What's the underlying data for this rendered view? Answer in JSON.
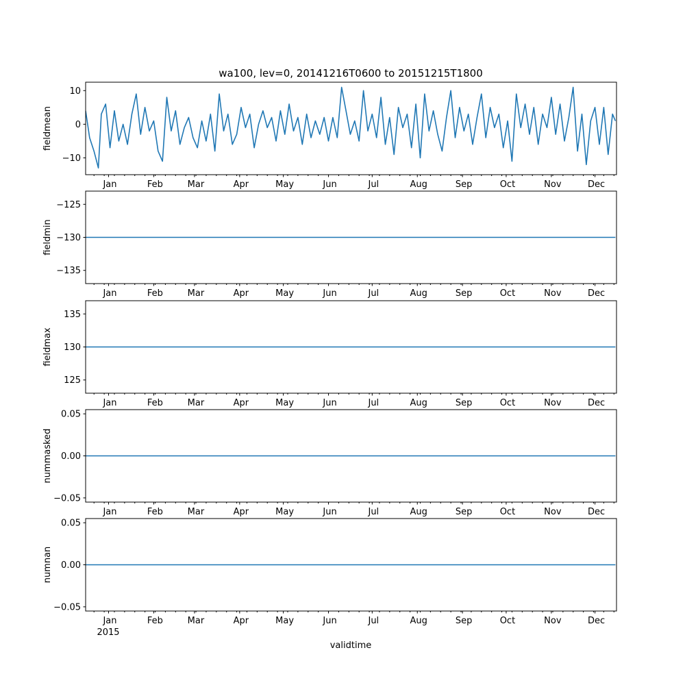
{
  "chart_data": {
    "type": "line",
    "title": "wa100, lev=0, 20141216T0600 to 20151215T1800",
    "xlabel": "validtime",
    "x_range": [
      "2014-12-16T06:00",
      "2015-12-15T18:00"
    ],
    "x_month_labels": [
      "Jan",
      "Feb",
      "Mar",
      "Apr",
      "May",
      "Jun",
      "Jul",
      "Aug",
      "Sep",
      "Oct",
      "Nov",
      "Dec"
    ],
    "x_month_dates": [
      "2015-01-01",
      "2015-02-01",
      "2015-03-01",
      "2015-04-01",
      "2015-05-01",
      "2015-06-01",
      "2015-07-01",
      "2015-08-01",
      "2015-09-01",
      "2015-10-01",
      "2015-11-01",
      "2015-12-01"
    ],
    "x_year_label": "2015",
    "minor_tick_dates": [
      "2014-12-22",
      "2014-12-29",
      "2015-01-05",
      "2015-01-12",
      "2015-01-19",
      "2015-01-26",
      "2015-02-02",
      "2015-02-09",
      "2015-02-16",
      "2015-02-23",
      "2015-03-02",
      "2015-03-09",
      "2015-03-16",
      "2015-03-23",
      "2015-03-30",
      "2015-04-06",
      "2015-04-13",
      "2015-04-20",
      "2015-04-27",
      "2015-05-04",
      "2015-05-11",
      "2015-05-18",
      "2015-05-25",
      "2015-06-01",
      "2015-06-08",
      "2015-06-15",
      "2015-06-22",
      "2015-06-29",
      "2015-07-06",
      "2015-07-13",
      "2015-07-20",
      "2015-07-27",
      "2015-08-03",
      "2015-08-10",
      "2015-08-17",
      "2015-08-24",
      "2015-08-31",
      "2015-09-07",
      "2015-09-14",
      "2015-09-21",
      "2015-09-28",
      "2015-10-05",
      "2015-10-12",
      "2015-10-19",
      "2015-10-26",
      "2015-11-02",
      "2015-11-09",
      "2015-11-16",
      "2015-11-23",
      "2015-11-30",
      "2015-12-07",
      "2015-12-14"
    ],
    "line_color": "#1f77b4",
    "panels": [
      {
        "ylabel": "fieldmean",
        "ylim": [
          -15,
          12.5
        ],
        "yticks": [
          -10,
          0,
          10
        ],
        "ytick_labels": [
          "−10",
          "0",
          "10"
        ],
        "series": {
          "x": [
            "2014-12-16",
            "2014-12-19",
            "2014-12-22",
            "2014-12-25",
            "2014-12-27",
            "2014-12-30",
            "2015-01-02",
            "2015-01-05",
            "2015-01-08",
            "2015-01-11",
            "2015-01-14",
            "2015-01-17",
            "2015-01-20",
            "2015-01-23",
            "2015-01-26",
            "2015-01-29",
            "2015-02-01",
            "2015-02-04",
            "2015-02-07",
            "2015-02-10",
            "2015-02-13",
            "2015-02-16",
            "2015-02-19",
            "2015-02-22",
            "2015-02-25",
            "2015-02-28",
            "2015-03-03",
            "2015-03-06",
            "2015-03-09",
            "2015-03-12",
            "2015-03-15",
            "2015-03-18",
            "2015-03-21",
            "2015-03-24",
            "2015-03-27",
            "2015-03-30",
            "2015-04-02",
            "2015-04-05",
            "2015-04-08",
            "2015-04-11",
            "2015-04-14",
            "2015-04-17",
            "2015-04-20",
            "2015-04-23",
            "2015-04-26",
            "2015-04-29",
            "2015-05-02",
            "2015-05-05",
            "2015-05-08",
            "2015-05-11",
            "2015-05-14",
            "2015-05-17",
            "2015-05-20",
            "2015-05-23",
            "2015-05-26",
            "2015-05-29",
            "2015-06-01",
            "2015-06-04",
            "2015-06-07",
            "2015-06-10",
            "2015-06-13",
            "2015-06-16",
            "2015-06-19",
            "2015-06-22",
            "2015-06-25",
            "2015-06-28",
            "2015-07-01",
            "2015-07-04",
            "2015-07-07",
            "2015-07-10",
            "2015-07-13",
            "2015-07-16",
            "2015-07-19",
            "2015-07-22",
            "2015-07-25",
            "2015-07-28",
            "2015-07-31",
            "2015-08-03",
            "2015-08-06",
            "2015-08-09",
            "2015-08-12",
            "2015-08-15",
            "2015-08-18",
            "2015-08-21",
            "2015-08-24",
            "2015-08-27",
            "2015-08-30",
            "2015-09-02",
            "2015-09-05",
            "2015-09-08",
            "2015-09-11",
            "2015-09-14",
            "2015-09-17",
            "2015-09-20",
            "2015-09-23",
            "2015-09-26",
            "2015-09-29",
            "2015-10-02",
            "2015-10-05",
            "2015-10-08",
            "2015-10-11",
            "2015-10-14",
            "2015-10-17",
            "2015-10-20",
            "2015-10-23",
            "2015-10-26",
            "2015-10-29",
            "2015-11-01",
            "2015-11-04",
            "2015-11-07",
            "2015-11-10",
            "2015-11-13",
            "2015-11-16",
            "2015-11-19",
            "2015-11-22",
            "2015-11-25",
            "2015-11-28",
            "2015-12-01",
            "2015-12-04",
            "2015-12-07",
            "2015-12-10",
            "2015-12-13",
            "2015-12-15"
          ],
          "y": [
            4,
            -4,
            -8,
            -13,
            3,
            6,
            -7,
            4,
            -5,
            0,
            -6,
            3,
            9,
            -3,
            5,
            -2,
            1,
            -8,
            -11,
            8,
            -2,
            4,
            -6,
            -1,
            2,
            -4,
            -7,
            1,
            -5,
            3,
            -8,
            9,
            -2,
            3,
            -6,
            -3,
            5,
            -1,
            3,
            -7,
            0,
            4,
            -1,
            2,
            -5,
            4,
            -3,
            6,
            -2,
            2,
            -6,
            3,
            -4,
            1,
            -3,
            2,
            -5,
            2,
            -4,
            11,
            4,
            -3,
            1,
            -5,
            10,
            -2,
            3,
            -4,
            8,
            -6,
            2,
            -9,
            5,
            -1,
            3,
            -7,
            6,
            -10,
            9,
            -2,
            4,
            -3,
            -8,
            2,
            10,
            -4,
            5,
            -2,
            3,
            -6,
            2,
            9,
            -4,
            5,
            -1,
            3,
            -7,
            1,
            -11,
            9,
            -1,
            6,
            -3,
            5,
            -6,
            3,
            -1,
            8,
            -3,
            6,
            -5,
            2,
            11,
            -8,
            3,
            -12,
            1,
            5,
            -6,
            5,
            -9,
            3,
            1
          ]
        }
      },
      {
        "ylabel": "fieldmin",
        "ylim": [
          -137,
          -123
        ],
        "yticks": [
          -135,
          -130,
          -125
        ],
        "ytick_labels": [
          "−135",
          "−130",
          "−125"
        ],
        "series": {
          "x": [
            "2014-12-16",
            "2015-12-15"
          ],
          "y": [
            -130,
            -130
          ]
        }
      },
      {
        "ylabel": "fieldmax",
        "ylim": [
          123,
          137
        ],
        "yticks": [
          125,
          130,
          135
        ],
        "ytick_labels": [
          "125",
          "130",
          "135"
        ],
        "series": {
          "x": [
            "2014-12-16",
            "2015-12-15"
          ],
          "y": [
            130,
            130
          ]
        }
      },
      {
        "ylabel": "nummasked",
        "ylim": [
          -0.055,
          0.055
        ],
        "yticks": [
          -0.05,
          0,
          0.05
        ],
        "ytick_labels": [
          "−0.05",
          "0.00",
          "0.05"
        ],
        "series": {
          "x": [
            "2014-12-16",
            "2015-12-15"
          ],
          "y": [
            0,
            0
          ]
        }
      },
      {
        "ylabel": "numnan",
        "ylim": [
          -0.055,
          0.055
        ],
        "yticks": [
          -0.05,
          0,
          0.05
        ],
        "ytick_labels": [
          "−0.05",
          "0.00",
          "0.05"
        ],
        "series": {
          "x": [
            "2014-12-16",
            "2015-12-15"
          ],
          "y": [
            0,
            0
          ]
        }
      }
    ]
  }
}
